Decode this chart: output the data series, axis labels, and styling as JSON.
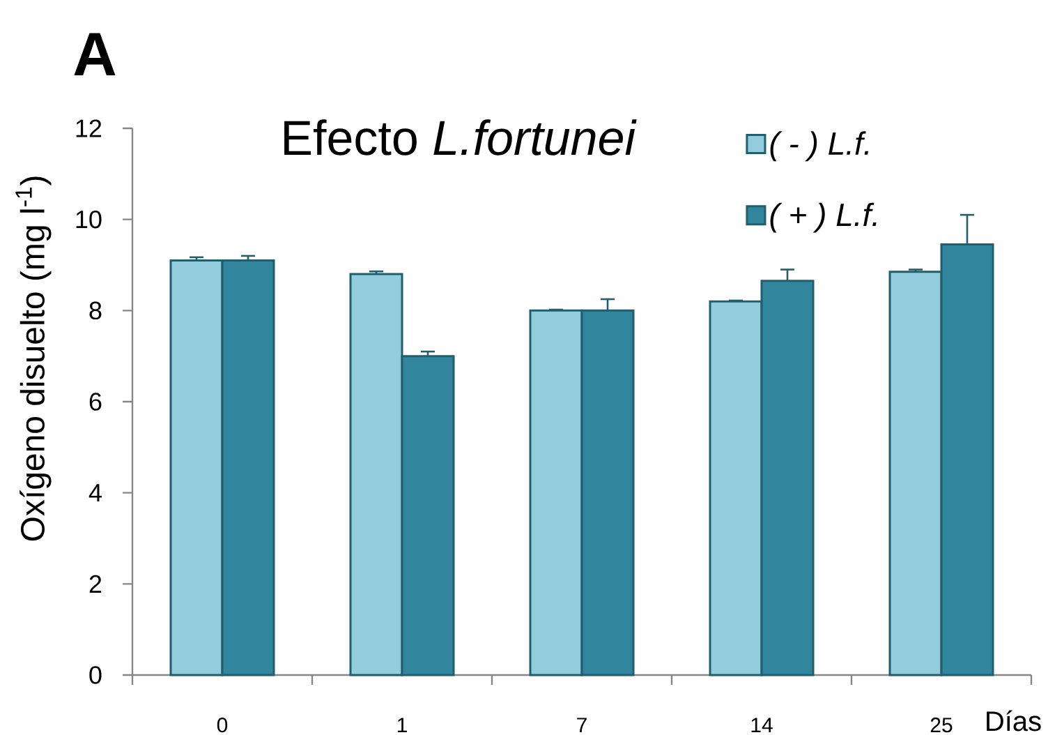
{
  "chart_data": {
    "type": "bar",
    "title": "Efecto *L.fortunei*",
    "xlabel": "Días",
    "ylabel": "Oxígeno disuelto (mg l$^{-1}$)",
    "annotations": [
      "A"
    ],
    "categories": [
      "0",
      "1",
      "7",
      "14",
      "25"
    ],
    "series": [
      {
        "name": "( - ) L.f.",
        "color": "#93cddd",
        "values": [
          9.1,
          8.8,
          8.0,
          8.2,
          8.85
        ],
        "errors": [
          [
            9.1,
            9.17
          ],
          [
            8.8,
            8.86
          ],
          [
            8.0,
            8.02
          ],
          [
            8.2,
            8.22
          ],
          [
            8.85,
            8.9
          ]
        ]
      },
      {
        "name": "( + ) L.f.",
        "color": "#31859c",
        "values": [
          9.1,
          7.0,
          8.0,
          8.65,
          9.45
        ],
        "errors": [
          [
            9.1,
            9.2
          ],
          [
            7.0,
            7.1
          ],
          [
            8.0,
            8.25
          ],
          [
            8.65,
            8.9
          ],
          [
            9.45,
            10.1
          ]
        ]
      }
    ],
    "ylim": [
      0,
      12
    ],
    "yticks": [
      0,
      2,
      4,
      6,
      8,
      10,
      12
    ],
    "legend": "top right"
  }
}
